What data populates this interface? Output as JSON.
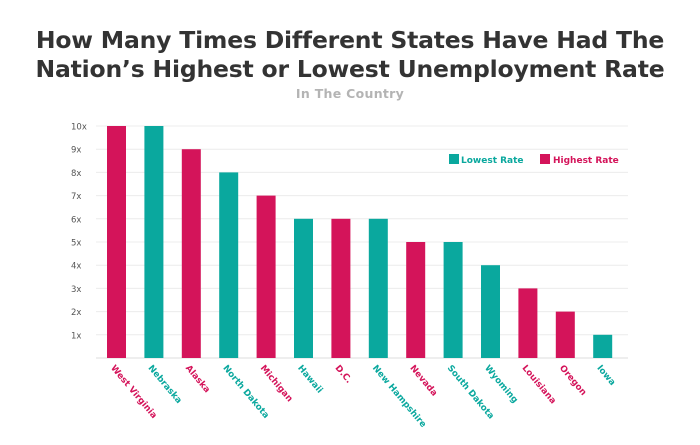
{
  "chart_data": {
    "type": "bar",
    "title_lines": [
      "How Many Times Different States Have Had The",
      "Nation’s Highest or Lowest Unemployment Rate"
    ],
    "subtitle": "In The Country",
    "xlabel": "",
    "ylabel": "",
    "ylim": [
      0,
      10
    ],
    "y_ticks": [
      {
        "value": 1,
        "label": "1x"
      },
      {
        "value": 2,
        "label": "2x"
      },
      {
        "value": 3,
        "label": "3x"
      },
      {
        "value": 4,
        "label": "4x"
      },
      {
        "value": 5,
        "label": "5x"
      },
      {
        "value": 6,
        "label": "6x"
      },
      {
        "value": 7,
        "label": "7x"
      },
      {
        "value": 8,
        "label": "8x"
      },
      {
        "value": 9,
        "label": "9x"
      },
      {
        "value": 10,
        "label": "10x"
      }
    ],
    "grid": true,
    "legend_position": "top-right",
    "legend": [
      {
        "key": "lowest",
        "label": "Lowest Rate",
        "color": "#0aa89e"
      },
      {
        "key": "highest",
        "label": "Highest Rate",
        "color": "#d4145a"
      }
    ],
    "categories": [
      "West Virginia",
      "Nebraska",
      "Alaska",
      "North Dakota",
      "Michigan",
      "Hawaii",
      "D.C.",
      "New Hampshire",
      "Nevada",
      "South Dakota",
      "Wyoming",
      "Louisiana",
      "Oregon",
      "Iowa"
    ],
    "values": [
      10,
      10,
      9,
      8,
      7,
      6,
      6,
      6,
      5,
      5,
      4,
      3,
      2,
      1
    ],
    "bar_series": [
      "highest",
      "lowest",
      "highest",
      "lowest",
      "highest",
      "lowest",
      "highest",
      "lowest",
      "highest",
      "lowest",
      "lowest",
      "highest",
      "highest",
      "lowest"
    ]
  }
}
